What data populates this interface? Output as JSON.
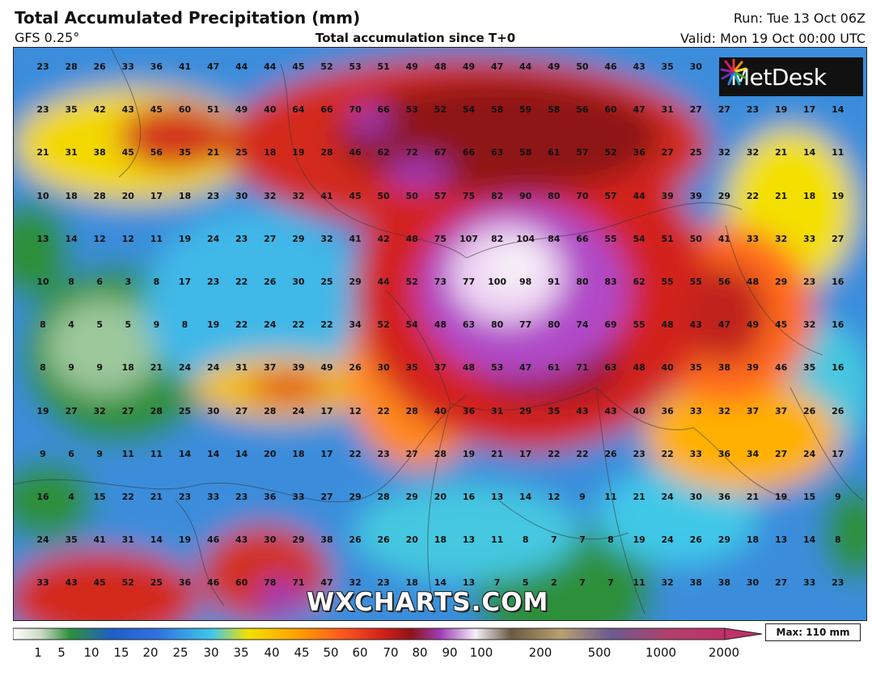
{
  "header": {
    "title": "Total Accumulated Precipitation (mm)",
    "model": "GFS 0.25°",
    "subtitle": "Total accumulation since T+0",
    "run": "Run: Tue 13 Oct 06Z",
    "valid": "Valid: Mon 19 Oct 00:00 UTC"
  },
  "brand": {
    "logo_text": "MetDesk",
    "watermark": "WXCHARTS.COM"
  },
  "legend": {
    "ticks": [
      "1",
      "5",
      "10",
      "15",
      "20",
      "25",
      "30",
      "35",
      "40",
      "45",
      "50",
      "60",
      "70",
      "80",
      "90",
      "100",
      "200",
      "500",
      "1000",
      "2000"
    ],
    "max_label": "Max: 110 mm"
  },
  "colors": {
    "low": "#1e7a2a",
    "blue": "#2f6fe0",
    "cyan": "#3fc8e8",
    "yellow": "#f3e000",
    "orange": "#ff8a1e",
    "red": "#d3201a",
    "darkred": "#8e1418",
    "purple": "#9d3bb5",
    "white": "#f4eef8"
  },
  "map_grid": {
    "rows": [
      [
        "23",
        "28",
        "26",
        "33",
        "36",
        "41",
        "47",
        "44",
        "44",
        "45",
        "52",
        "53",
        "51",
        "49",
        "48",
        "49",
        "47",
        "44",
        "49",
        "50",
        "46",
        "43",
        "35",
        "30",
        "",
        "",
        "",
        ""
      ],
      [
        "23",
        "35",
        "42",
        "43",
        "45",
        "60",
        "51",
        "49",
        "40",
        "64",
        "66",
        "70",
        "66",
        "53",
        "52",
        "54",
        "58",
        "59",
        "58",
        "56",
        "60",
        "47",
        "31",
        "27",
        "27",
        "23",
        "19",
        "17",
        "14"
      ],
      [
        "21",
        "31",
        "38",
        "45",
        "56",
        "35",
        "21",
        "25",
        "18",
        "19",
        "28",
        "46",
        "62",
        "72",
        "67",
        "66",
        "63",
        "58",
        "61",
        "57",
        "52",
        "36",
        "27",
        "25",
        "32",
        "32",
        "21",
        "14",
        "11"
      ],
      [
        "10",
        "18",
        "28",
        "20",
        "17",
        "18",
        "23",
        "30",
        "32",
        "32",
        "41",
        "45",
        "50",
        "50",
        "57",
        "75",
        "82",
        "90",
        "80",
        "70",
        "57",
        "44",
        "39",
        "39",
        "29",
        "22",
        "21",
        "18",
        "19"
      ],
      [
        "13",
        "14",
        "12",
        "12",
        "11",
        "19",
        "24",
        "23",
        "27",
        "29",
        "32",
        "41",
        "42",
        "48",
        "75",
        "107",
        "82",
        "104",
        "84",
        "66",
        "55",
        "54",
        "51",
        "50",
        "41",
        "33",
        "32",
        "33",
        "27"
      ],
      [
        "10",
        "8",
        "6",
        "3",
        "8",
        "17",
        "23",
        "22",
        "26",
        "30",
        "25",
        "29",
        "44",
        "52",
        "73",
        "77",
        "100",
        "98",
        "91",
        "80",
        "83",
        "62",
        "55",
        "55",
        "56",
        "48",
        "29",
        "23",
        "16"
      ],
      [
        "8",
        "4",
        "5",
        "5",
        "9",
        "8",
        "19",
        "22",
        "24",
        "22",
        "22",
        "34",
        "52",
        "54",
        "48",
        "63",
        "80",
        "77",
        "80",
        "74",
        "69",
        "55",
        "48",
        "43",
        "47",
        "49",
        "45",
        "32",
        "16"
      ],
      [
        "8",
        "9",
        "9",
        "18",
        "21",
        "24",
        "24",
        "31",
        "37",
        "39",
        "49",
        "26",
        "30",
        "35",
        "37",
        "48",
        "53",
        "47",
        "61",
        "71",
        "63",
        "48",
        "40",
        "35",
        "38",
        "39",
        "46",
        "35",
        "16"
      ],
      [
        "19",
        "27",
        "32",
        "27",
        "28",
        "25",
        "30",
        "27",
        "28",
        "24",
        "17",
        "12",
        "22",
        "28",
        "40",
        "36",
        "31",
        "29",
        "35",
        "43",
        "43",
        "40",
        "36",
        "33",
        "32",
        "37",
        "37",
        "26",
        "26"
      ],
      [
        "9",
        "6",
        "9",
        "11",
        "11",
        "14",
        "14",
        "14",
        "20",
        "18",
        "17",
        "22",
        "23",
        "27",
        "28",
        "19",
        "21",
        "17",
        "22",
        "22",
        "26",
        "23",
        "22",
        "33",
        "36",
        "34",
        "27",
        "24",
        "17"
      ],
      [
        "16",
        "4",
        "15",
        "22",
        "21",
        "23",
        "33",
        "23",
        "36",
        "33",
        "27",
        "29",
        "28",
        "29",
        "20",
        "16",
        "13",
        "14",
        "12",
        "9",
        "11",
        "21",
        "24",
        "30",
        "36",
        "21",
        "19",
        "15",
        "9"
      ],
      [
        "24",
        "35",
        "41",
        "31",
        "14",
        "19",
        "46",
        "43",
        "30",
        "29",
        "38",
        "26",
        "26",
        "20",
        "18",
        "13",
        "11",
        "8",
        "7",
        "7",
        "8",
        "19",
        "24",
        "26",
        "29",
        "18",
        "13",
        "14",
        "8"
      ],
      [
        "33",
        "43",
        "45",
        "52",
        "25",
        "36",
        "46",
        "60",
        "78",
        "71",
        "47",
        "32",
        "23",
        "18",
        "14",
        "13",
        "7",
        "5",
        "2",
        "7",
        "7",
        "11",
        "32",
        "38",
        "38",
        "30",
        "27",
        "33",
        "23"
      ]
    ]
  }
}
